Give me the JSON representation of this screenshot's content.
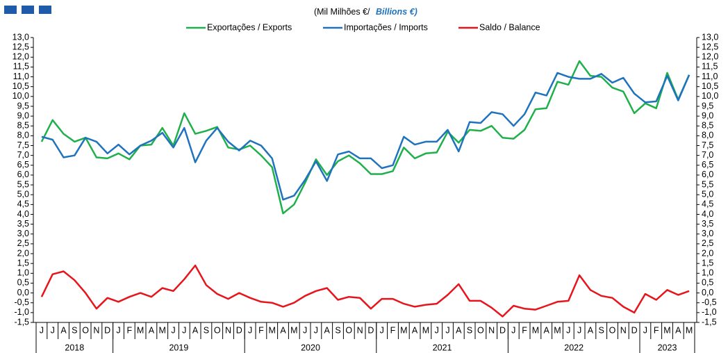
{
  "chart_data": {
    "type": "line",
    "subtitle_pt": "(Mil Milhões €/",
    "subtitle_en": "Billions €)",
    "categories": [
      "J",
      "J",
      "A",
      "S",
      "O",
      "N",
      "D",
      "J",
      "F",
      "M",
      "A",
      "M",
      "J",
      "J",
      "A",
      "S",
      "O",
      "N",
      "D",
      "J",
      "F",
      "M",
      "A",
      "M",
      "J",
      "J",
      "A",
      "S",
      "O",
      "N",
      "D",
      "J",
      "F",
      "M",
      "A",
      "M",
      "J",
      "J",
      "A",
      "S",
      "O",
      "N",
      "D",
      "J",
      "F",
      "M",
      "A",
      "M",
      "J",
      "J",
      "A",
      "S",
      "O",
      "N",
      "D",
      "J",
      "F",
      "M",
      "A",
      "M"
    ],
    "x_groups": [
      {
        "label": "2018",
        "months": 7
      },
      {
        "label": "2019",
        "months": 12
      },
      {
        "label": "2020",
        "months": 12
      },
      {
        "label": "2021",
        "months": 12
      },
      {
        "label": "2022",
        "months": 12
      },
      {
        "label": "2023",
        "months": 5
      }
    ],
    "series": [
      {
        "name": "Exportações / Exports",
        "color": "#1fb04b",
        "values": [
          7.7,
          8.8,
          8.1,
          7.7,
          7.9,
          6.9,
          6.85,
          7.1,
          6.8,
          7.5,
          7.55,
          8.4,
          7.5,
          9.15,
          8.1,
          8.25,
          8.45,
          7.4,
          7.3,
          7.5,
          7.0,
          6.4,
          4.05,
          4.5,
          5.6,
          6.8,
          6.0,
          6.7,
          7.0,
          6.6,
          6.05,
          6.05,
          6.2,
          7.4,
          6.85,
          7.1,
          7.15,
          8.2,
          7.65,
          8.3,
          8.25,
          8.5,
          7.9,
          7.85,
          8.3,
          9.35,
          9.4,
          10.75,
          10.6,
          11.8,
          11.05,
          11.0,
          10.45,
          10.25,
          9.15,
          9.65,
          9.4,
          11.2,
          9.85,
          11.1
        ]
      },
      {
        "name": "Importações / Imports",
        "color": "#1f73be",
        "values": [
          7.95,
          7.8,
          6.9,
          7.0,
          7.9,
          7.7,
          7.1,
          7.55,
          7.05,
          7.5,
          7.75,
          8.15,
          7.4,
          8.4,
          6.65,
          7.75,
          8.4,
          7.7,
          7.25,
          7.75,
          7.5,
          6.85,
          4.75,
          4.95,
          5.75,
          6.7,
          5.7,
          7.05,
          7.2,
          6.85,
          6.85,
          6.35,
          6.5,
          7.95,
          7.55,
          7.7,
          7.7,
          8.3,
          7.2,
          8.7,
          8.65,
          9.2,
          9.1,
          8.5,
          9.1,
          10.2,
          10.05,
          11.2,
          11.0,
          10.9,
          10.9,
          11.15,
          10.7,
          10.95,
          10.15,
          9.7,
          9.75,
          11.05,
          9.8,
          11.1
        ]
      },
      {
        "name": "Saldo / Balance",
        "color": "#e8141c",
        "values": [
          -0.2,
          0.95,
          1.1,
          0.65,
          0.0,
          -0.8,
          -0.25,
          -0.45,
          -0.2,
          0.0,
          -0.2,
          0.25,
          0.1,
          0.7,
          1.4,
          0.4,
          -0.05,
          -0.3,
          0.0,
          -0.25,
          -0.45,
          -0.5,
          -0.7,
          -0.5,
          -0.15,
          0.1,
          0.25,
          -0.35,
          -0.2,
          -0.25,
          -0.8,
          -0.3,
          -0.3,
          -0.55,
          -0.7,
          -0.6,
          -0.55,
          -0.1,
          0.45,
          -0.4,
          -0.4,
          -0.75,
          -1.2,
          -0.65,
          -0.8,
          -0.85,
          -0.65,
          -0.45,
          -0.4,
          0.9,
          0.15,
          -0.15,
          -0.25,
          -0.7,
          -1.0,
          -0.05,
          -0.35,
          0.15,
          -0.1,
          0.1
        ]
      }
    ],
    "ylim": [
      -1.5,
      13.0
    ],
    "yticks": [
      {
        "value": -1.5,
        "label": "-1,5"
      },
      {
        "value": -1.0,
        "label": "-1,0"
      },
      {
        "value": -0.5,
        "label": "-0,5"
      },
      {
        "value": 0,
        "label": "0,0"
      },
      {
        "value": 0.5,
        "label": "0,5"
      },
      {
        "value": 1.0,
        "label": "1,0"
      },
      {
        "value": 1.5,
        "label": "1,5"
      },
      {
        "value": 2.0,
        "label": "2,0"
      },
      {
        "value": 2.5,
        "label": "2,5"
      },
      {
        "value": 3.0,
        "label": "3,0"
      },
      {
        "value": 3.5,
        "label": "3,5"
      },
      {
        "value": 4.0,
        "label": "4,0"
      },
      {
        "value": 4.5,
        "label": "4,5"
      },
      {
        "value": 5.0,
        "label": "5,0"
      },
      {
        "value": 5.5,
        "label": "5,5"
      },
      {
        "value": 6.0,
        "label": "6,0"
      },
      {
        "value": 6.5,
        "label": "6,5"
      },
      {
        "value": 7.0,
        "label": "7,0"
      },
      {
        "value": 7.5,
        "label": "7,5"
      },
      {
        "value": 8.0,
        "label": "8,0"
      },
      {
        "value": 8.5,
        "label": "8,5"
      },
      {
        "value": 9.0,
        "label": "9,0"
      },
      {
        "value": 9.5,
        "label": "9,5"
      },
      {
        "value": 10.0,
        "label": "10,0"
      },
      {
        "value": 10.5,
        "label": "10,5"
      },
      {
        "value": 11.0,
        "label": "11,0"
      },
      {
        "value": 11.5,
        "label": "11,5"
      },
      {
        "value": 12.0,
        "label": "12,0"
      },
      {
        "value": 12.5,
        "label": "12,5"
      },
      {
        "value": 13.0,
        "label": "13,0"
      }
    ],
    "legend": "top"
  }
}
